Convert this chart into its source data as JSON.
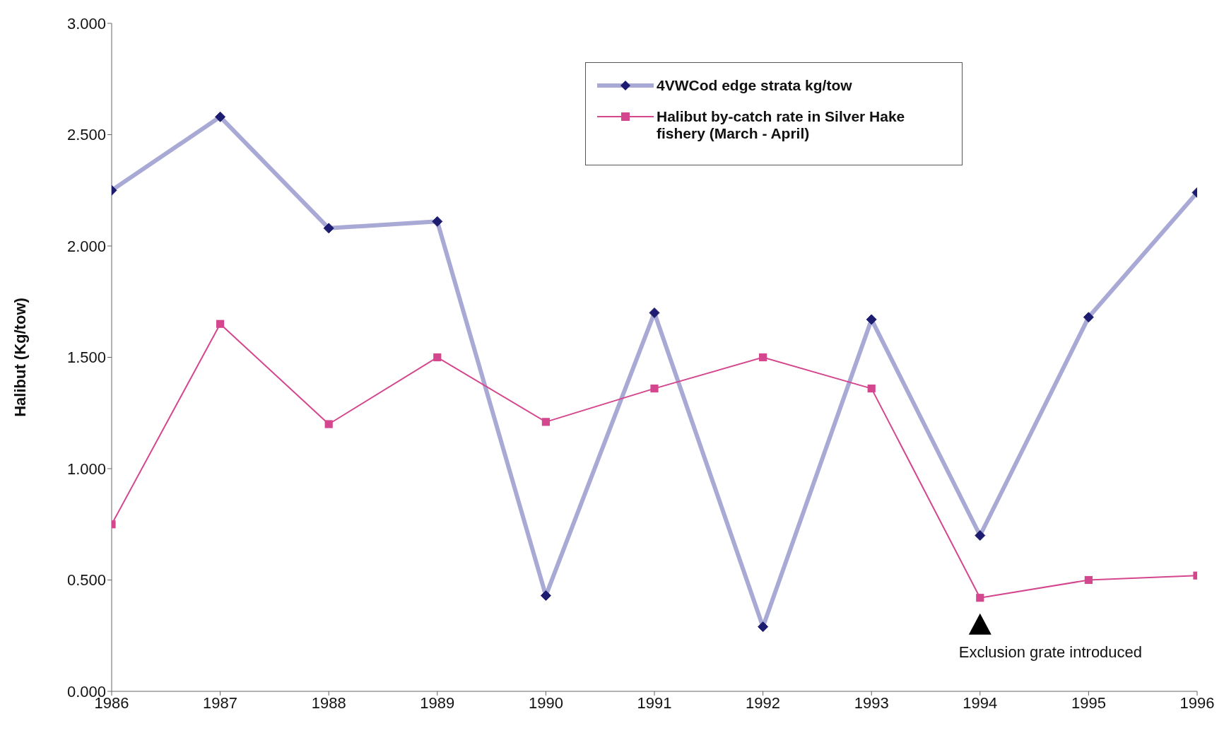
{
  "chart_data": {
    "type": "line",
    "ylabel": "Halibut (Kg/tow)",
    "x": [
      1986,
      1987,
      1988,
      1989,
      1990,
      1991,
      1992,
      1993,
      1994,
      1995,
      1996
    ],
    "xlim": [
      1986,
      1996
    ],
    "xticks": [
      1986,
      1987,
      1988,
      1989,
      1990,
      1991,
      1992,
      1993,
      1994,
      1995,
      1996
    ],
    "ylim": [
      0,
      3
    ],
    "yticks": [
      {
        "value": 0,
        "label": "0.000"
      },
      {
        "value": 0.5,
        "label": "0.500"
      },
      {
        "value": 1,
        "label": "1.000"
      },
      {
        "value": 1.5,
        "label": "1.500"
      },
      {
        "value": 2,
        "label": "2.000"
      },
      {
        "value": 2.5,
        "label": "2.500"
      },
      {
        "value": 3,
        "label": "3.000"
      }
    ],
    "series": [
      {
        "name": "4VWCod edge strata kg/tow",
        "color": "#a9a9d6",
        "marker": "diamond",
        "values": [
          2.25,
          2.58,
          2.08,
          2.11,
          0.43,
          1.7,
          0.29,
          1.67,
          0.7,
          1.68,
          2.24
        ]
      },
      {
        "name": "Halibut by-catch rate in Silver Hake fishery (March - April)",
        "color": "#d4468e",
        "marker": "square",
        "values": [
          0.75,
          1.65,
          1.2,
          1.5,
          1.21,
          1.36,
          1.5,
          1.36,
          0.42,
          0.5,
          0.52
        ]
      }
    ],
    "annotations": [
      {
        "text": "Exclusion grate introduced",
        "x": 1994,
        "y": 0.42
      }
    ],
    "grid": false,
    "legend": "top right"
  }
}
